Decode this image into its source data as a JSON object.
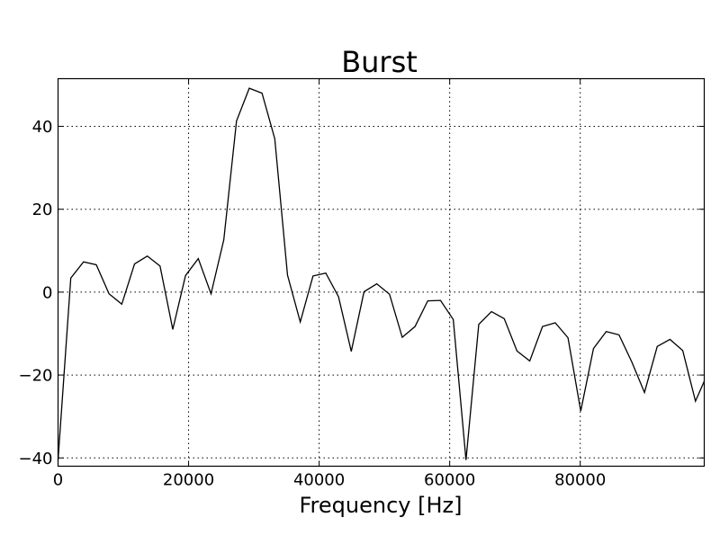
{
  "chart_data": {
    "type": "line",
    "title": "Burst",
    "xlabel": "Frequency [Hz]",
    "ylabel": "",
    "xlim": [
      0,
      99000
    ],
    "ylim": [
      -42,
      51.5
    ],
    "grid": true,
    "x_ticks": [
      0,
      20000,
      40000,
      60000,
      80000
    ],
    "x_tick_labels": [
      "0",
      "20000",
      "40000",
      "60000",
      "80000"
    ],
    "y_ticks": [
      -40,
      -20,
      0,
      20,
      40
    ],
    "y_tick_labels": [
      "−40",
      "−20",
      "0",
      "20",
      "40"
    ],
    "series": [
      {
        "color": "#000000",
        "x": [
          0,
          1953,
          3906,
          5859,
          7812,
          9766,
          11719,
          13672,
          15625,
          17578,
          19531,
          21484,
          23438,
          25391,
          27344,
          29297,
          31250,
          33203,
          35156,
          37109,
          39062,
          41016,
          42969,
          44922,
          46875,
          48828,
          50781,
          52734,
          54688,
          56641,
          58594,
          60547,
          62500,
          64453,
          66406,
          68359,
          70312,
          72266,
          74219,
          76172,
          78125,
          80078,
          82031,
          83984,
          85938,
          87891,
          89844,
          91797,
          93750,
          95703,
          97656,
          99000
        ],
        "y": [
          -40.5,
          3.4,
          7.3,
          6.6,
          -0.4,
          -2.9,
          6.8,
          8.7,
          6.3,
          -9.0,
          4.0,
          8.1,
          -0.4,
          12.6,
          41.3,
          49.2,
          48.0,
          37.0,
          4.1,
          -7.2,
          3.9,
          4.6,
          -1.1,
          -14.3,
          0.1,
          2.0,
          -0.5,
          -10.9,
          -8.3,
          -2.1,
          -2.0,
          -6.6,
          -40.5,
          -7.8,
          -4.7,
          -6.4,
          -14.2,
          -16.6,
          -8.3,
          -7.4,
          -11.0,
          -28.7,
          -13.6,
          -9.5,
          -10.3,
          -16.8,
          -24.2,
          -13.1,
          -11.4,
          -14.1,
          -26.3,
          -21.5
        ]
      }
    ]
  }
}
